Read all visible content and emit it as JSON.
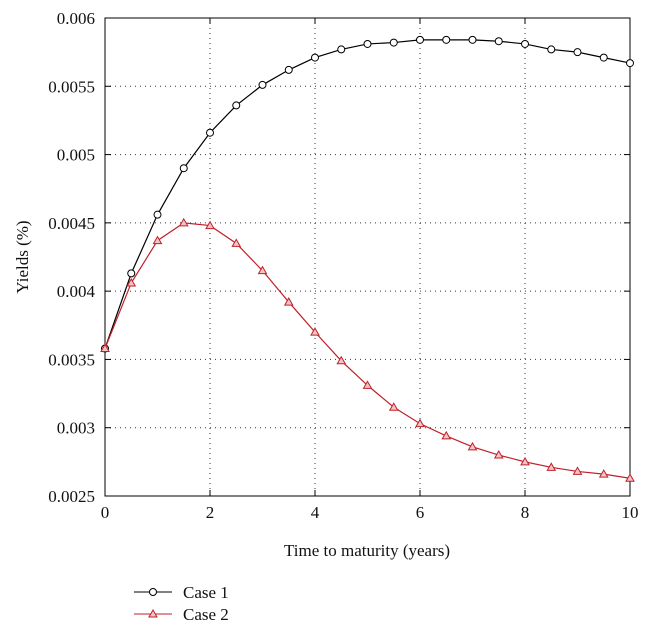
{
  "chart_data": {
    "type": "line",
    "xlabel": "Time to maturity (years)",
    "ylabel": "Yields (%)",
    "xlim": [
      0,
      10
    ],
    "ylim": [
      0.0025,
      0.006
    ],
    "x_ticks": [
      0,
      2,
      4,
      6,
      8,
      10
    ],
    "x_tick_labels": [
      "0",
      "2",
      "4",
      "6",
      "8",
      "10"
    ],
    "y_ticks": [
      0.0025,
      0.003,
      0.0035,
      0.004,
      0.0045,
      0.005,
      0.0055,
      0.006
    ],
    "y_tick_labels": [
      "0.0025",
      "0.003",
      "0.0035",
      "0.004",
      "0.0045",
      "0.005",
      "0.0055",
      "0.006"
    ],
    "grid": true,
    "legend_position": "bottom-left",
    "x": [
      0,
      0.5,
      1,
      1.5,
      2,
      2.5,
      3,
      3.5,
      4,
      4.5,
      5,
      5.5,
      6,
      6.5,
      7,
      7.5,
      8,
      8.5,
      9,
      9.5,
      10
    ],
    "series": [
      {
        "name": "Case 1",
        "color": "#000000",
        "marker": "circle",
        "values": [
          0.00358,
          0.00413,
          0.00456,
          0.0049,
          0.00516,
          0.00536,
          0.00551,
          0.00562,
          0.00571,
          0.00577,
          0.00581,
          0.00582,
          0.00584,
          0.00584,
          0.00584,
          0.00583,
          0.00581,
          0.00577,
          0.00575,
          0.00571,
          0.00567
        ]
      },
      {
        "name": "Case 2",
        "color": "#c0202a",
        "marker": "triangle",
        "values": [
          0.00358,
          0.00406,
          0.00437,
          0.0045,
          0.00448,
          0.00435,
          0.00415,
          0.00392,
          0.0037,
          0.00349,
          0.00331,
          0.00315,
          0.00303,
          0.00294,
          0.00286,
          0.0028,
          0.00275,
          0.00271,
          0.00268,
          0.00266,
          0.00263
        ]
      }
    ]
  }
}
